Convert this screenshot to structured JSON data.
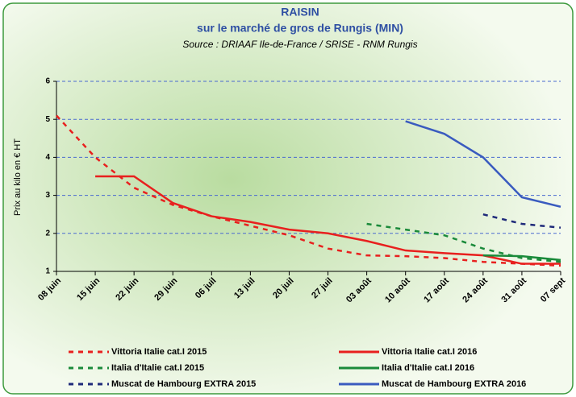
{
  "chart_data": {
    "type": "line",
    "title": "RAISIN",
    "subtitle": "sur le marché de gros de Rungis (MIN)",
    "source": "Source : DRIAAF Ile-de-France / SRISE - RNM Rungis",
    "ylabel": "Prix au kilo en € HT",
    "categories": [
      "08 juin",
      "15 juin",
      "22 juin",
      "29 juin",
      "06 juil",
      "13 juil",
      "20 juil",
      "27 juil",
      "03 août",
      "10 août",
      "17 août",
      "24 août",
      "31 août",
      "07 sept"
    ],
    "ylim": [
      1,
      6
    ],
    "yticks": [
      1,
      2,
      3,
      4,
      5,
      6
    ],
    "grid": true,
    "series": [
      {
        "name": "Vittoria Italie cat.I 2015",
        "color": "#e8201e",
        "dash": true,
        "values": [
          5.1,
          4.0,
          3.2,
          2.75,
          2.45,
          2.2,
          1.95,
          1.6,
          1.42,
          1.4,
          1.35,
          1.25,
          1.2,
          1.15
        ]
      },
      {
        "name": "Vittoria Italie cat.I 2016",
        "color": "#e8201e",
        "dash": false,
        "values": [
          null,
          3.5,
          3.5,
          2.8,
          2.45,
          2.3,
          2.1,
          2.0,
          1.8,
          1.55,
          1.48,
          1.42,
          1.2,
          1.2
        ]
      },
      {
        "name": "Italia d'Italie cat.I 2015",
        "color": "#1a8a3a",
        "dash": true,
        "values": [
          null,
          null,
          null,
          null,
          null,
          null,
          null,
          null,
          2.25,
          2.1,
          1.95,
          1.6,
          1.35,
          1.25
        ]
      },
      {
        "name": "Italia d'Italie cat.I 2016",
        "color": "#1a8a3a",
        "dash": false,
        "values": [
          null,
          null,
          null,
          null,
          null,
          null,
          null,
          null,
          null,
          null,
          null,
          1.42,
          1.4,
          1.3
        ]
      },
      {
        "name": "Muscat de Hambourg EXTRA 2015",
        "color": "#1f2a7a",
        "dash": true,
        "values": [
          null,
          null,
          null,
          null,
          null,
          null,
          null,
          null,
          null,
          null,
          null,
          2.5,
          2.25,
          2.15
        ]
      },
      {
        "name": "Muscat de Hambourg EXTRA 2016",
        "color": "#3a5bbf",
        "dash": false,
        "values": [
          null,
          null,
          null,
          null,
          null,
          null,
          null,
          null,
          null,
          4.95,
          4.62,
          4.0,
          2.95,
          2.7
        ]
      }
    ]
  }
}
